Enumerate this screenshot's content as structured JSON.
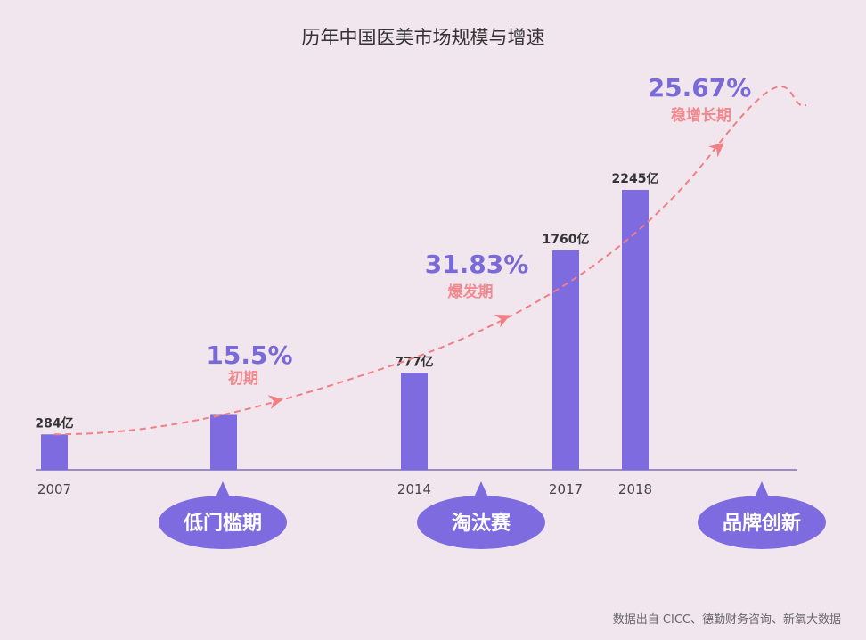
{
  "chart_data": {
    "type": "bar",
    "title": "历年中国医美市场规模与增速",
    "categories": [
      "2007",
      "",
      "2014",
      "2017",
      "2018"
    ],
    "values": [
      284,
      440,
      777,
      1760,
      2245
    ],
    "data_labels": [
      "284亿",
      "",
      "777亿",
      "1760亿",
      "2245亿"
    ],
    "ylim": [
      0,
      2245
    ],
    "grid": false,
    "bar_color": "#7e6be0",
    "trend_color": "#f07f86",
    "growth_annotations": [
      {
        "rate": "15.5%",
        "phase": "初期"
      },
      {
        "rate": "31.83%",
        "phase": "爆发期"
      },
      {
        "rate": "25.67%",
        "phase": "稳增长期"
      }
    ],
    "stage_bubbles": [
      "低门槛期",
      "淘汰赛",
      "品牌创新"
    ]
  },
  "source": "数据出自 CICC、德勤财务咨询、新氧大数据"
}
